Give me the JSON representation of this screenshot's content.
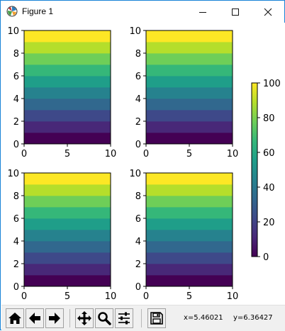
{
  "window": {
    "title": "Figure 1"
  },
  "chart_data": {
    "type": "heatmap",
    "subplots": [
      {
        "name": "top-left"
      },
      {
        "name": "top-right"
      },
      {
        "name": "bottom-left"
      },
      {
        "name": "bottom-right"
      }
    ],
    "xlim": [
      0,
      10
    ],
    "ylim": [
      0,
      10
    ],
    "x_ticks": [
      "0",
      "5",
      "10"
    ],
    "y_ticks": [
      "0",
      "2",
      "4",
      "6",
      "8",
      "10"
    ],
    "rows": 10,
    "values_by_row_from_bottom": [
      0,
      10,
      20,
      30,
      40,
      50,
      60,
      70,
      80,
      90
    ],
    "colormap": "viridis",
    "row_colors": [
      "#440154",
      "#482878",
      "#3e4989",
      "#31688e",
      "#26828e",
      "#1f9e89",
      "#35b779",
      "#6ece58",
      "#b5de2b",
      "#fde725"
    ],
    "colorbar": {
      "range": [
        0,
        100
      ],
      "ticks": [
        "0",
        "20",
        "40",
        "60",
        "80",
        "100"
      ]
    }
  },
  "toolbar": {
    "home": "home-icon",
    "back": "back-icon",
    "forward": "forward-icon",
    "pan": "pan-icon",
    "zoom": "zoom-icon",
    "configure": "configure-subplots-icon",
    "save": "save-icon",
    "x_readout": "x=5.46021",
    "y_readout": "y=6.36427"
  }
}
